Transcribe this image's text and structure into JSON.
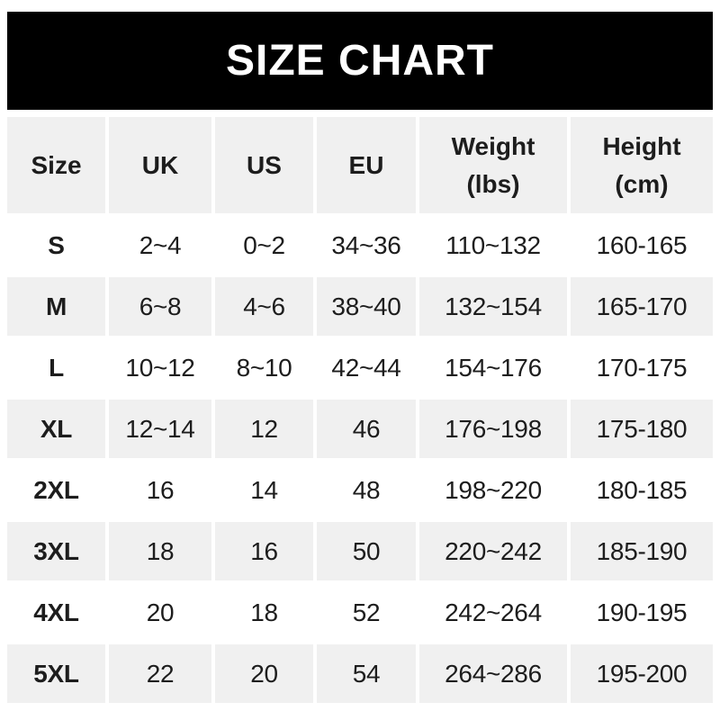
{
  "chart_data": {
    "type": "table",
    "title": "SIZE CHART",
    "columns": [
      "Size",
      "UK",
      "US",
      "EU",
      "Weight\n(lbs)",
      "Height\n(cm)"
    ],
    "rows": [
      [
        "S",
        "2~4",
        "0~2",
        "34~36",
        "110~132",
        "160-165"
      ],
      [
        "M",
        "6~8",
        "4~6",
        "38~40",
        "132~154",
        "165-170"
      ],
      [
        "L",
        "10~12",
        "8~10",
        "42~44",
        "154~176",
        "170-175"
      ],
      [
        "XL",
        "12~14",
        "12",
        "46",
        "176~198",
        "175-180"
      ],
      [
        "2XL",
        "16",
        "14",
        "48",
        "198~220",
        "180-185"
      ],
      [
        "3XL",
        "18",
        "16",
        "50",
        "220~242",
        "185-190"
      ],
      [
        "4XL",
        "20",
        "18",
        "52",
        "242~264",
        "190-195"
      ],
      [
        "5XL",
        "22",
        "20",
        "54",
        "264~286",
        "195-200"
      ]
    ],
    "layout": {
      "header_row_shaded": true,
      "shaded_data_rows": [
        "M",
        "XL",
        "3XL",
        "5XL"
      ],
      "grid": "white gaps between cells, no borders"
    }
  },
  "colors": {
    "banner_bg": "#000000",
    "banner_fg": "#ffffff",
    "cell_gray": "#f0f0f0",
    "text": "#1d1d1d"
  }
}
